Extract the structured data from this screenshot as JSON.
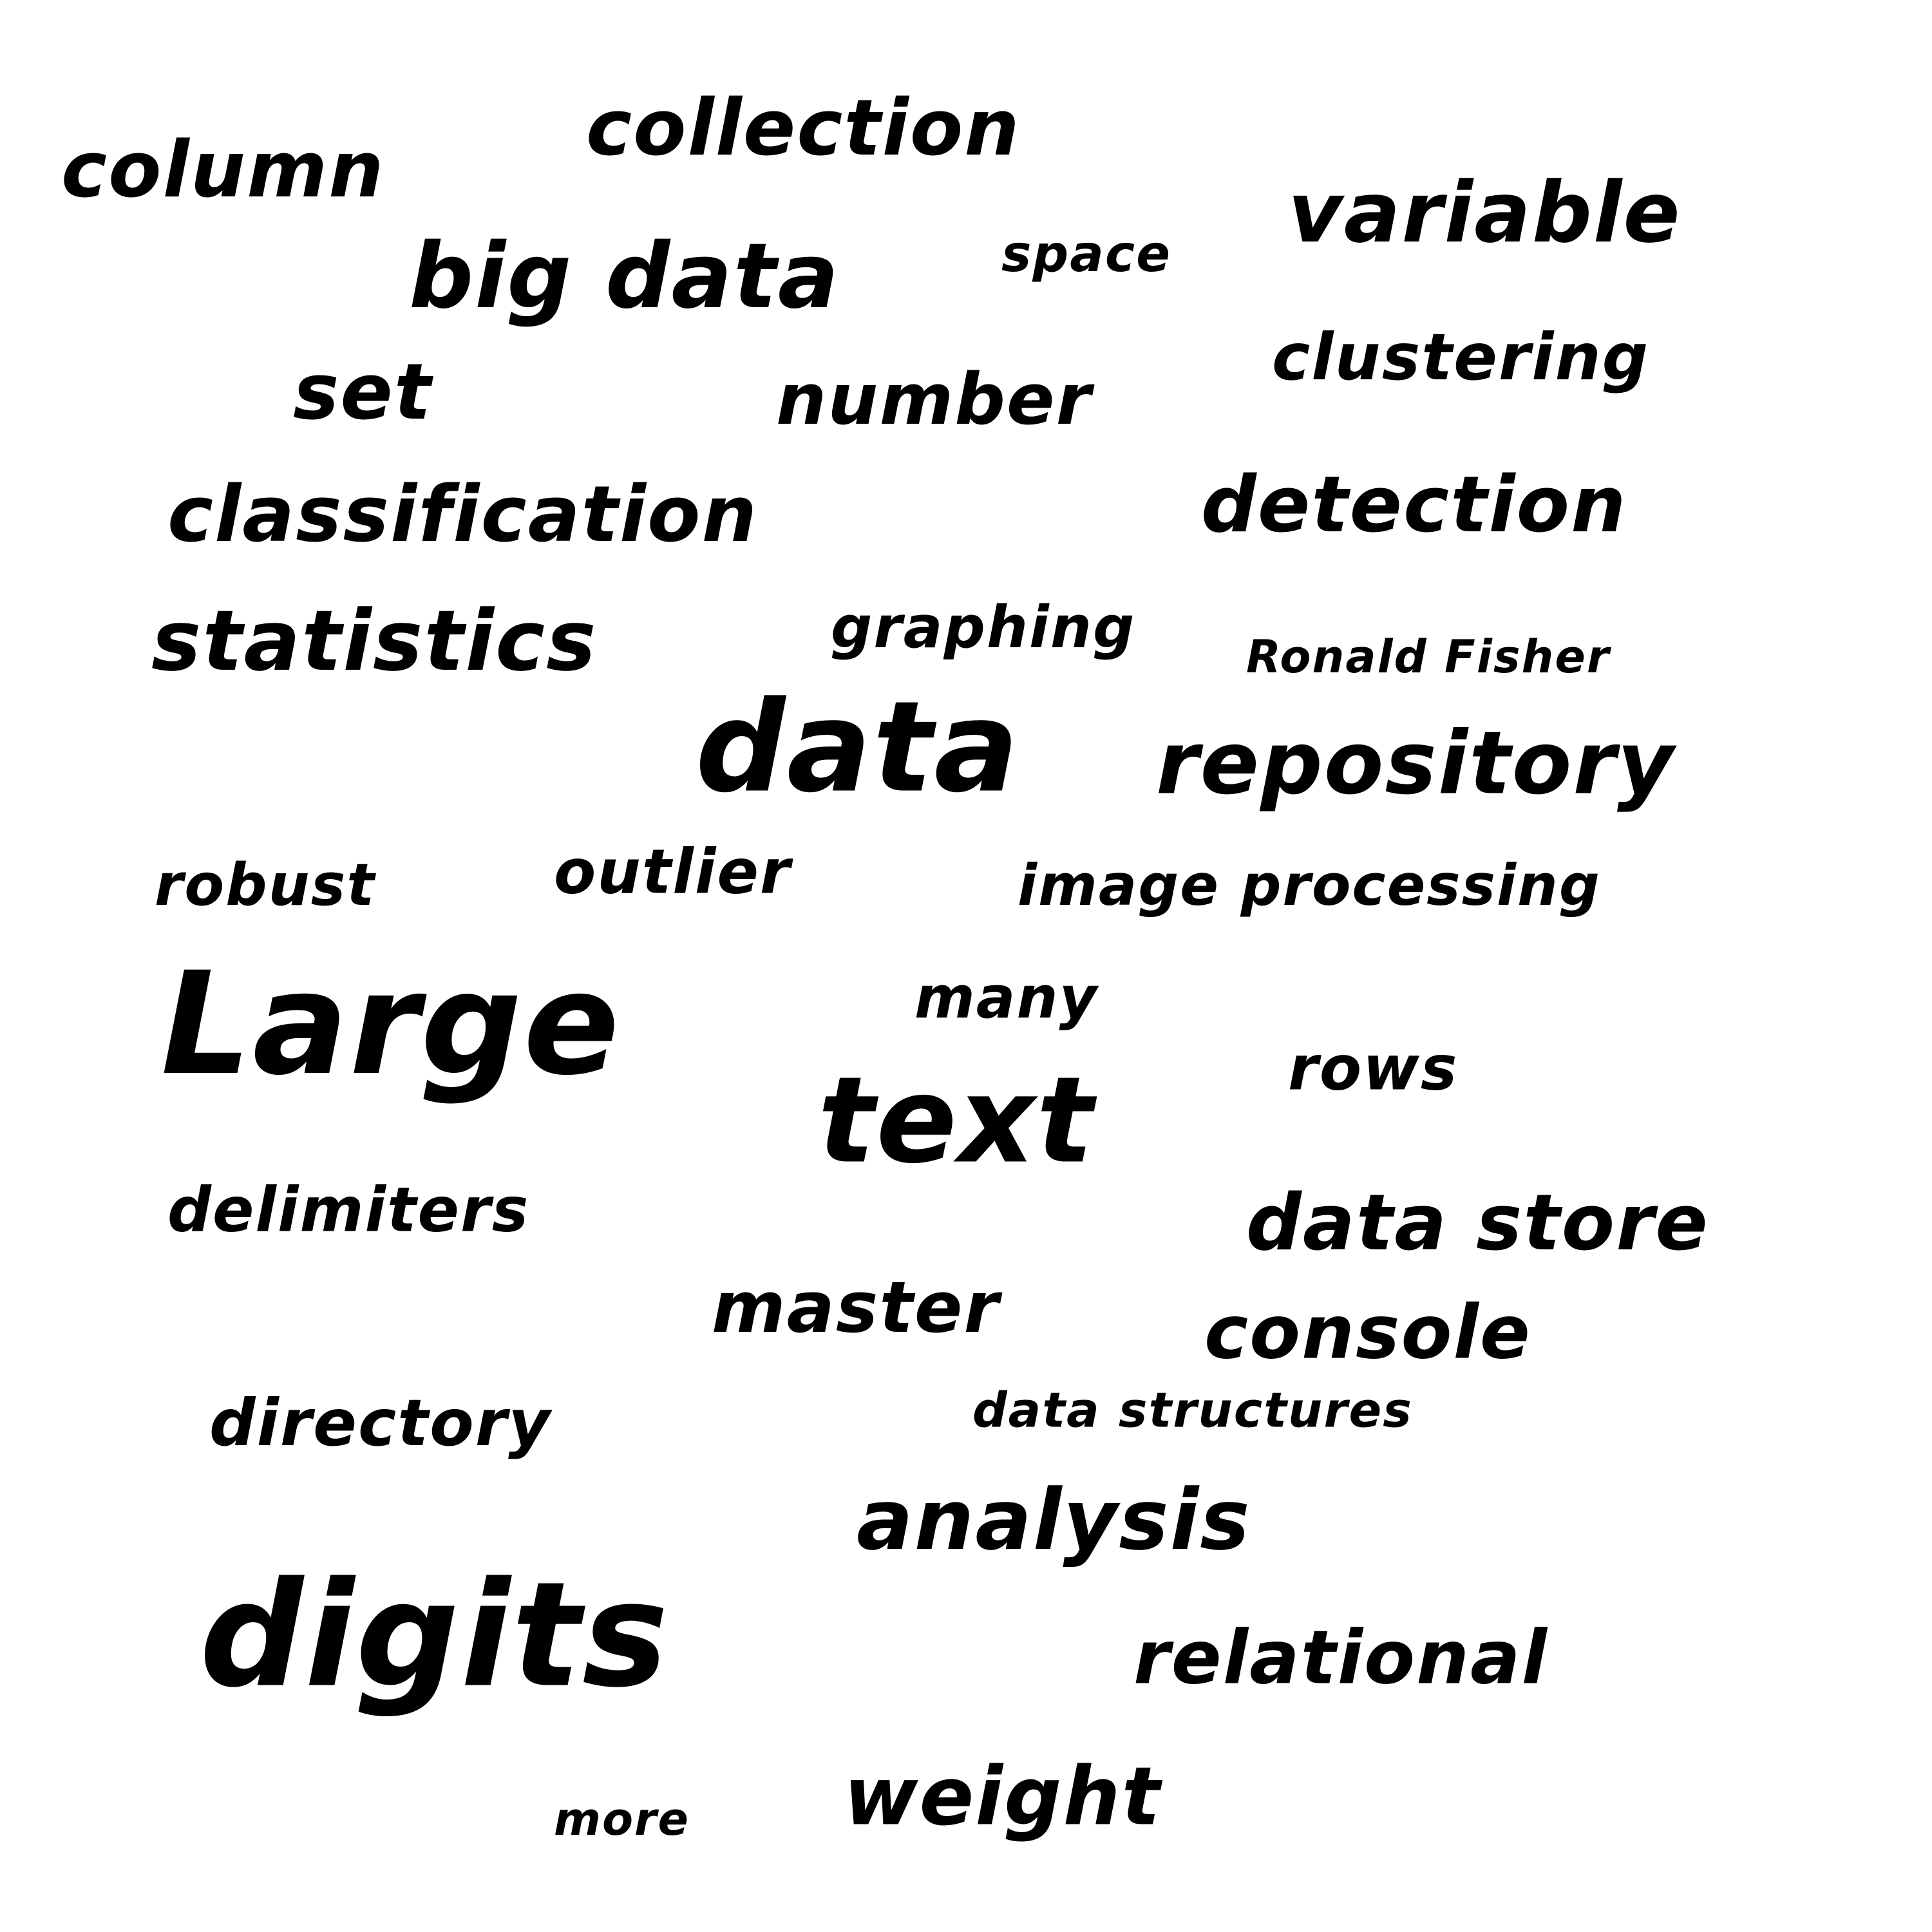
{
  "cloud": {
    "text_color": "#000000",
    "background": "#ffffff",
    "words": [
      {
        "text": "column"
      },
      {
        "text": "collection"
      },
      {
        "text": "variable"
      },
      {
        "text": "big data"
      },
      {
        "text": "space"
      },
      {
        "text": "clustering"
      },
      {
        "text": "set"
      },
      {
        "text": "number"
      },
      {
        "text": "classification"
      },
      {
        "text": "detection"
      },
      {
        "text": "statistics"
      },
      {
        "text": "graphing"
      },
      {
        "text": "Ronald Fisher"
      },
      {
        "text": "data"
      },
      {
        "text": "repository"
      },
      {
        "text": "robust"
      },
      {
        "text": "outlier"
      },
      {
        "text": "image processing"
      },
      {
        "text": "Large"
      },
      {
        "text": "many"
      },
      {
        "text": "text"
      },
      {
        "text": "rows"
      },
      {
        "text": "delimiters"
      },
      {
        "text": "data store"
      },
      {
        "text": "master"
      },
      {
        "text": "console"
      },
      {
        "text": "directory"
      },
      {
        "text": "data structures"
      },
      {
        "text": "analysis"
      },
      {
        "text": "digits"
      },
      {
        "text": "relational"
      },
      {
        "text": "weight"
      },
      {
        "text": "more"
      }
    ]
  }
}
